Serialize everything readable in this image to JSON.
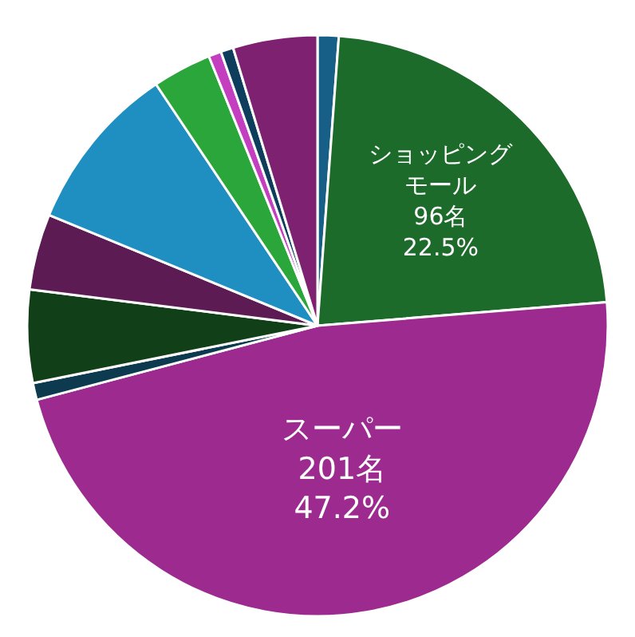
{
  "chart_data": {
    "type": "pie",
    "categories": [
      null,
      "ショッピングモール",
      "スーパー",
      null,
      null,
      null,
      null,
      null,
      null,
      null,
      null
    ],
    "values": [
      5,
      96,
      201,
      4,
      22,
      18,
      40,
      14,
      3,
      3,
      20
    ],
    "value_labels": [
      null,
      "96名\n22.5%",
      "201名\n47.2%",
      null,
      null,
      null,
      null,
      null,
      null,
      null,
      null
    ],
    "colors": [
      "#175f86",
      "#1c6b2a",
      "#9c2a8f",
      "#0d3a4f",
      "#113f18",
      "#5c1b52",
      "#1f8fc2",
      "#2aa63a",
      "#c43fc0",
      "#0f3e5c",
      "#7e2170"
    ],
    "legend": false
  }
}
